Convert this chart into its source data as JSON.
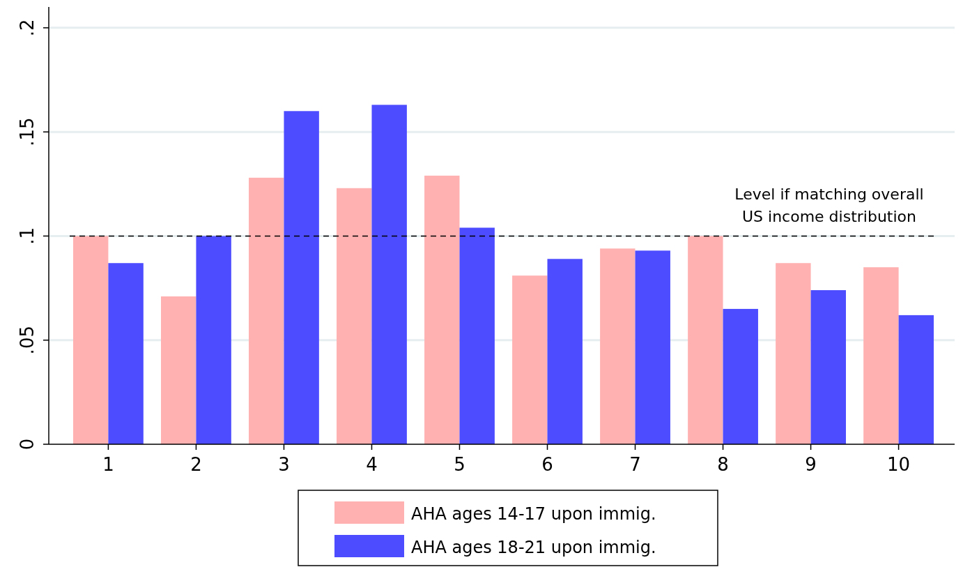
{
  "chart_data": {
    "type": "bar",
    "categories": [
      "1",
      "2",
      "3",
      "4",
      "5",
      "6",
      "7",
      "8",
      "9",
      "10"
    ],
    "series": [
      {
        "name": "AHA ages 14-17 upon immig.",
        "color": "#ffb0b0",
        "values": [
          0.1,
          0.071,
          0.128,
          0.123,
          0.129,
          0.081,
          0.094,
          0.1,
          0.087,
          0.085
        ]
      },
      {
        "name": "AHA ages 18-21 upon immig.",
        "color": "#4d4dff",
        "values": [
          0.087,
          0.1,
          0.16,
          0.163,
          0.104,
          0.089,
          0.093,
          0.065,
          0.074,
          0.062
        ]
      }
    ],
    "ylim": [
      0,
      0.21
    ],
    "yticks": [
      {
        "value": 0,
        "label": "0"
      },
      {
        "value": 0.05,
        "label": ".05"
      },
      {
        "value": 0.1,
        "label": ".1"
      },
      {
        "value": 0.15,
        "label": ".15"
      },
      {
        "value": 0.2,
        "label": ".2"
      }
    ],
    "grid": "y",
    "legend": "bottom",
    "ref_lines": [
      {
        "axis": "y",
        "value": 0.1,
        "label": "Level if matching overall\nUS income distribution",
        "color": "#000000",
        "line_style": "dashed"
      }
    ]
  }
}
